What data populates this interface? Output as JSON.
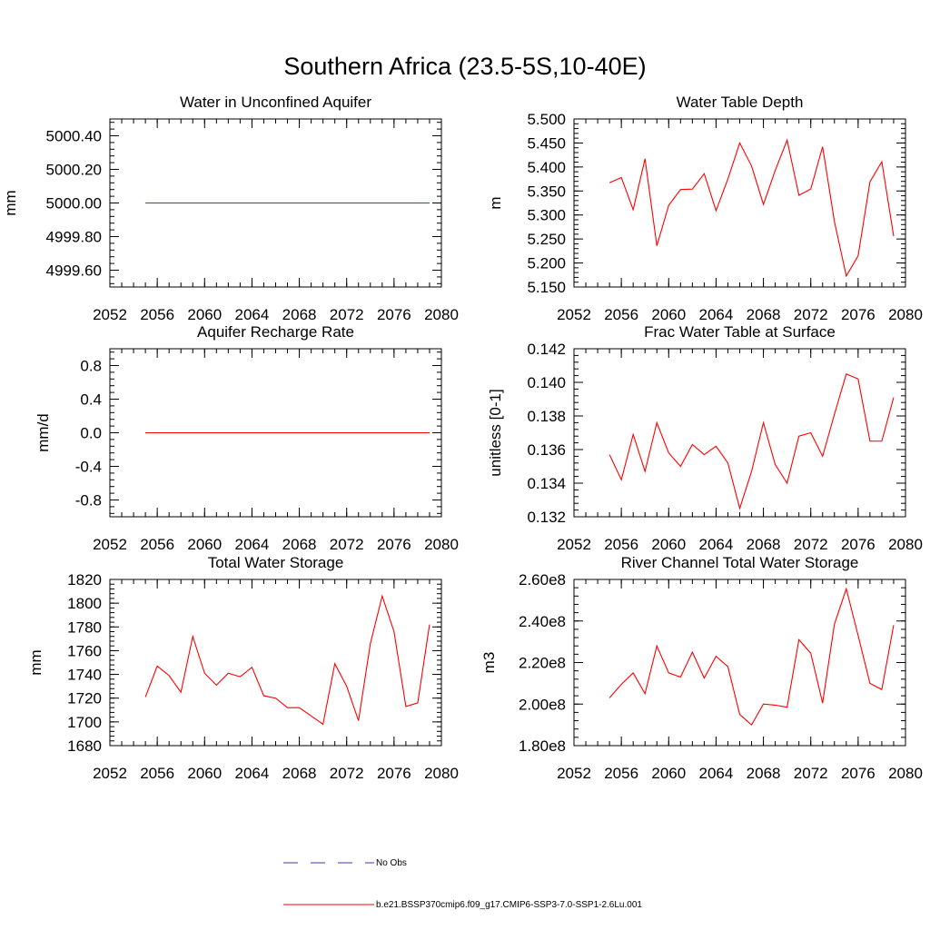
{
  "figure": {
    "title": "Southern Africa (23.5-5S,10-40E)"
  },
  "legend": {
    "entries": [
      {
        "label": "No Obs",
        "color": "#3a3ab0",
        "style": "dashed"
      },
      {
        "label": "b.e21.BSSP370cmip6.f09_g17.CMIP6-SSP3-7.0-SSP1-2.6Lu.001",
        "color": "#ff0000",
        "style": "solid"
      }
    ]
  },
  "chart_data": [
    {
      "type": "line",
      "title": "Water in Unconfined Aquifer",
      "ylabel": "mm",
      "xlim": [
        2052,
        2080
      ],
      "ylim": [
        4999.5,
        5000.5
      ],
      "xticks": [
        "2052",
        "2056",
        "2060",
        "2064",
        "2068",
        "2072",
        "2076",
        "2080"
      ],
      "yticks": [
        "4999.60",
        "4999.80",
        "5000.00",
        "5000.20",
        "5000.40"
      ],
      "x": [
        2055,
        2056,
        2057,
        2058,
        2059,
        2060,
        2061,
        2062,
        2063,
        2064,
        2065,
        2066,
        2067,
        2068,
        2069,
        2070,
        2071,
        2072,
        2073,
        2074,
        2075,
        2076,
        2077,
        2078,
        2079
      ],
      "series": [
        {
          "color": "#ff0000",
          "values": [
            5000,
            5000,
            5000,
            5000,
            5000,
            5000,
            5000,
            5000,
            5000,
            5000,
            5000,
            5000,
            5000,
            5000,
            5000,
            5000,
            5000,
            5000,
            5000,
            5000,
            5000,
            5000,
            5000,
            5000,
            5000
          ]
        }
      ]
    },
    {
      "type": "line",
      "title": "Water Table Depth",
      "ylabel": "m",
      "xlim": [
        2052,
        2080
      ],
      "ylim": [
        5.15,
        5.5
      ],
      "xticks": [
        "2052",
        "2056",
        "2060",
        "2064",
        "2068",
        "2072",
        "2076",
        "2080"
      ],
      "yticks": [
        "5.150",
        "5.200",
        "5.250",
        "5.300",
        "5.350",
        "5.400",
        "5.450",
        "5.500"
      ],
      "x": [
        2055,
        2056,
        2057,
        2058,
        2059,
        2060,
        2061,
        2062,
        2063,
        2064,
        2065,
        2066,
        2067,
        2068,
        2069,
        2070,
        2071,
        2072,
        2073,
        2074,
        2075,
        2076,
        2077,
        2078,
        2079
      ],
      "series": [
        {
          "color": "#ff0000",
          "values": [
            5.367,
            5.378,
            5.311,
            5.417,
            5.236,
            5.32,
            5.353,
            5.354,
            5.386,
            5.309,
            5.375,
            5.45,
            5.402,
            5.322,
            5.393,
            5.456,
            5.341,
            5.354,
            5.442,
            5.286,
            5.173,
            5.215,
            5.369,
            5.411,
            5.256
          ]
        }
      ]
    },
    {
      "type": "line",
      "title": "Aquifer Recharge Rate",
      "ylabel": "mm/d",
      "xlim": [
        2052,
        2080
      ],
      "ylim": [
        -1.0,
        1.0
      ],
      "xticks": [
        "2052",
        "2056",
        "2060",
        "2064",
        "2068",
        "2072",
        "2076",
        "2080"
      ],
      "yticks": [
        "-0.8",
        "-0.4",
        "0.0",
        "0.4",
        "0.8"
      ],
      "x": [
        2055,
        2056,
        2057,
        2058,
        2059,
        2060,
        2061,
        2062,
        2063,
        2064,
        2065,
        2066,
        2067,
        2068,
        2069,
        2070,
        2071,
        2072,
        2073,
        2074,
        2075,
        2076,
        2077,
        2078,
        2079
      ],
      "series": [
        {
          "color": "#ff0000",
          "values": [
            0,
            0,
            0,
            0,
            0,
            0,
            0,
            0,
            0,
            0,
            0,
            0,
            0,
            0,
            0,
            0,
            0,
            0,
            0,
            0,
            0,
            0,
            0,
            0,
            0
          ]
        }
      ]
    },
    {
      "type": "line",
      "title": "Frac Water Table at Surface",
      "ylabel": "unitless [0-1]",
      "xlim": [
        2052,
        2080
      ],
      "ylim": [
        0.132,
        0.142
      ],
      "xticks": [
        "2052",
        "2056",
        "2060",
        "2064",
        "2068",
        "2072",
        "2076",
        "2080"
      ],
      "yticks": [
        "0.132",
        "0.134",
        "0.136",
        "0.138",
        "0.140",
        "0.142"
      ],
      "x": [
        2055,
        2056,
        2057,
        2058,
        2059,
        2060,
        2061,
        2062,
        2063,
        2064,
        2065,
        2066,
        2067,
        2068,
        2069,
        2070,
        2071,
        2072,
        2073,
        2074,
        2075,
        2076,
        2077,
        2078,
        2079
      ],
      "series": [
        {
          "color": "#ff0000",
          "values": [
            0.1357,
            0.1342,
            0.1369,
            0.1347,
            0.1376,
            0.1358,
            0.135,
            0.1363,
            0.1357,
            0.1362,
            0.1352,
            0.1325,
            0.1347,
            0.1376,
            0.1351,
            0.134,
            0.1368,
            0.137,
            0.1356,
            0.1381,
            0.1405,
            0.1402,
            0.1365,
            0.1365,
            0.1391
          ]
        }
      ]
    },
    {
      "type": "line",
      "title": "Total Water Storage",
      "ylabel": "mm",
      "xlim": [
        2052,
        2080
      ],
      "ylim": [
        1680,
        1820
      ],
      "xticks": [
        "2052",
        "2056",
        "2060",
        "2064",
        "2068",
        "2072",
        "2076",
        "2080"
      ],
      "yticks": [
        "1680",
        "1700",
        "1720",
        "1740",
        "1760",
        "1780",
        "1800",
        "1820"
      ],
      "x": [
        2055,
        2056,
        2057,
        2058,
        2059,
        2060,
        2061,
        2062,
        2063,
        2064,
        2065,
        2066,
        2067,
        2068,
        2069,
        2070,
        2071,
        2072,
        2073,
        2074,
        2075,
        2076,
        2077,
        2078,
        2079
      ],
      "series": [
        {
          "color": "#ff0000",
          "values": [
            1721,
            1747,
            1739,
            1725,
            1772,
            1741,
            1731,
            1741,
            1738,
            1746,
            1722,
            1720,
            1712,
            1712,
            1705,
            1698,
            1749,
            1730,
            1701,
            1766,
            1806,
            1776,
            1713,
            1716,
            1782
          ]
        }
      ]
    },
    {
      "type": "line",
      "title": "River Channel Total Water Storage",
      "ylabel": "m3",
      "xlim": [
        2052,
        2080
      ],
      "ylim": [
        180000000,
        260000000
      ],
      "xticks": [
        "2052",
        "2056",
        "2060",
        "2064",
        "2068",
        "2072",
        "2076",
        "2080"
      ],
      "yticks": [
        "1.80e8",
        "2.00e8",
        "2.20e8",
        "2.40e8",
        "2.60e8"
      ],
      "x": [
        2055,
        2056,
        2057,
        2058,
        2059,
        2060,
        2061,
        2062,
        2063,
        2064,
        2065,
        2066,
        2067,
        2068,
        2069,
        2070,
        2071,
        2072,
        2073,
        2074,
        2075,
        2076,
        2077,
        2078,
        2079
      ],
      "series": [
        {
          "color": "#ff0000",
          "values": [
            203000000,
            209500000,
            215000000,
            205000000,
            228000000,
            215000000,
            213000000,
            225000000,
            212500000,
            223000000,
            218000000,
            195000000,
            190000000,
            200000000,
            199500000,
            198500000,
            231000000,
            224500000,
            200500000,
            238500000,
            255500000,
            233000000,
            210000000,
            207000000,
            238000000
          ]
        }
      ]
    }
  ]
}
